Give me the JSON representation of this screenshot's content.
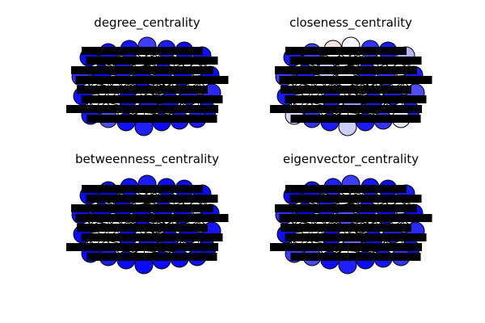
{
  "chart_data": [
    {
      "type": "network",
      "title": "degree_centrality",
      "colormap": "bwr",
      "node_shading_levels": [
        0.02,
        0.03,
        0.04,
        0.12,
        0.05,
        0.02,
        0.03,
        0.02,
        0.08,
        0.03,
        0.05,
        0.04,
        0.02,
        0.06,
        0.03,
        0.15,
        0.04,
        0.03,
        0.09,
        0.02,
        0.05,
        0.03,
        0.04,
        0.02,
        0.06,
        0.03,
        0.05,
        0.02
      ]
    },
    {
      "type": "network",
      "title": "closeness_centrality",
      "colormap": "bwr",
      "node_shading_levels": [
        0.05,
        0.12,
        0.55,
        0.48,
        0.1,
        0.05,
        0.35,
        0.05,
        0.15,
        0.05,
        0.45,
        0.1,
        0.05,
        0.4,
        0.05,
        0.1,
        0.42,
        0.05,
        0.12,
        0.05,
        0.38,
        0.46,
        0.05,
        0.1,
        0.05,
        0.05,
        0.3,
        0.05
      ]
    },
    {
      "type": "network",
      "title": "betweenness_centrality",
      "colormap": "bwr",
      "node_shading_levels": [
        0.02,
        0.02,
        0.03,
        0.05,
        0.02,
        0.02,
        0.02,
        0.02,
        0.04,
        0.02,
        0.03,
        0.02,
        0.02,
        0.02,
        0.02,
        0.05,
        0.02,
        0.02,
        0.03,
        0.02,
        0.02,
        0.02,
        0.03,
        0.02,
        0.02,
        0.02,
        0.04,
        0.02
      ]
    },
    {
      "type": "network",
      "title": "eigenvector_centrality",
      "colormap": "bwr",
      "node_shading_levels": [
        0.02,
        0.03,
        0.06,
        0.12,
        0.04,
        0.02,
        0.05,
        0.02,
        0.08,
        0.03,
        0.1,
        0.04,
        0.02,
        0.06,
        0.03,
        0.14,
        0.12,
        0.03,
        0.09,
        0.02,
        0.05,
        0.16,
        0.04,
        0.02,
        0.06,
        0.03,
        0.2,
        0.02
      ]
    }
  ]
}
